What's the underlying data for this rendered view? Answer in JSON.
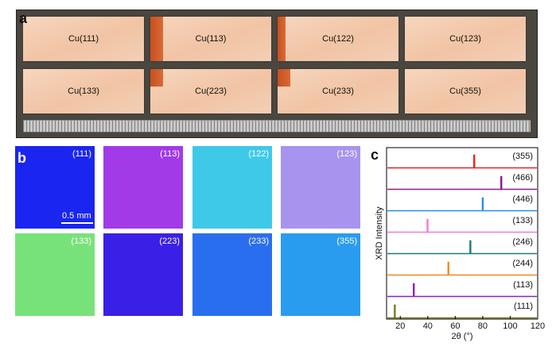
{
  "panel_a": {
    "letter": "a",
    "foils": [
      {
        "label": "Cu(111)",
        "oxide": false
      },
      {
        "label": "Cu(113)",
        "oxide": true
      },
      {
        "label": "Cu(122)",
        "oxide": true
      },
      {
        "label": "Cu(123)",
        "oxide": false
      },
      {
        "label": "Cu(133)",
        "oxide": false
      },
      {
        "label": "Cu(223)",
        "oxide": true
      },
      {
        "label": "Cu(233)",
        "oxide": true
      },
      {
        "label": "Cu(355)",
        "oxide": false
      }
    ]
  },
  "panel_b": {
    "letter": "b",
    "scale_bar": "0.5 mm",
    "tiles": [
      {
        "label": "(111)",
        "color": "#1a25f0"
      },
      {
        "label": "(113)",
        "color": "#a23ae8"
      },
      {
        "label": "(122)",
        "color": "#3fc9e8"
      },
      {
        "label": "(123)",
        "color": "#a894ee"
      },
      {
        "label": "(133)",
        "color": "#78e27a"
      },
      {
        "label": "(223)",
        "color": "#3a20e6"
      },
      {
        "label": "(233)",
        "color": "#2a6ef0"
      },
      {
        "label": "(355)",
        "color": "#2a9cf0"
      }
    ]
  },
  "panel_c": {
    "letter": "c",
    "chart_data": {
      "type": "line",
      "xlabel": "2θ (°)",
      "ylabel": "XRD Intensity",
      "xlim": [
        10,
        120
      ],
      "xticks": [
        20,
        40,
        60,
        80,
        100,
        120
      ],
      "series": [
        {
          "name": "(355)",
          "color": "#e8221e",
          "peaks": [
            73.8
          ]
        },
        {
          "name": "(466)",
          "color": "#8a1a8a",
          "peaks": [
            93.5
          ]
        },
        {
          "name": "(446)",
          "color": "#2a8ee0",
          "peaks": [
            80.0
          ]
        },
        {
          "name": "(133)",
          "color": "#f07ad8",
          "peaks": [
            39.8
          ]
        },
        {
          "name": "(246)",
          "color": "#1a7a7a",
          "peaks": [
            71.0
          ]
        },
        {
          "name": "(244)",
          "color": "#f08a1e",
          "peaks": [
            55.0
          ]
        },
        {
          "name": "(113)",
          "color": "#8a20c8",
          "peaks": [
            29.8
          ]
        },
        {
          "name": "(111)",
          "color": "#7a7a1a",
          "peaks": [
            16.0
          ]
        }
      ]
    }
  }
}
